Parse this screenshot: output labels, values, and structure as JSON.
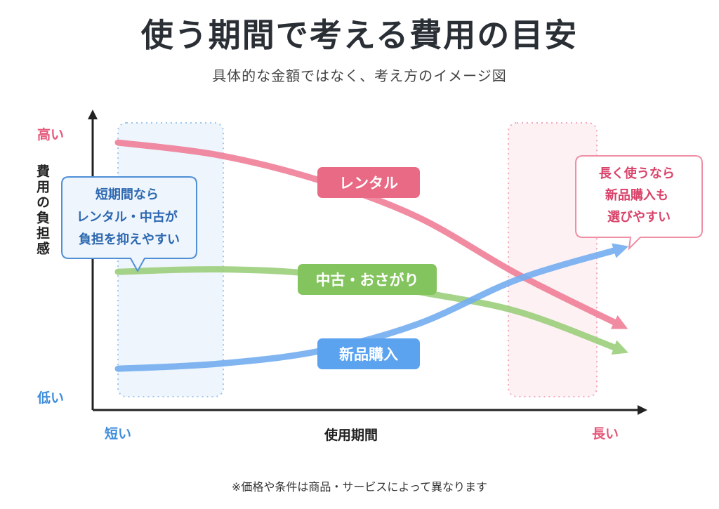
{
  "title": "使う期間で考える費用の目安",
  "subtitle": "具体的な金額ではなく、考え方のイメージ図",
  "footnote": "※価格や条件は商品・サービスによって異なります",
  "colors": {
    "rental": "#f07f99",
    "used": "#9ccf7c",
    "new": "#74aef0",
    "rental_label": "#e86a85",
    "used_label": "#84c45f",
    "new_label": "#5ba2ef",
    "high": "#e6587a",
    "low": "#3f8edc",
    "axis": "#222222"
  },
  "chart_data": {
    "type": "line",
    "title": "使う期間で考える費用の目安",
    "xlabel": "使用期間",
    "ylabel": "費用の負担感",
    "x_tick_labels": {
      "start": "短い",
      "end": "長い"
    },
    "y_tick_labels": {
      "low": "低い",
      "high": "高い"
    },
    "xlim": [
      0,
      1
    ],
    "ylim": [
      0,
      1
    ],
    "grid": false,
    "series": [
      {
        "name": "レンタル",
        "color": "#f07f99",
        "x": [
          0,
          0.2,
          0.4,
          0.6,
          0.8,
          1.0
        ],
        "y": [
          0.98,
          0.93,
          0.83,
          0.68,
          0.45,
          0.25
        ]
      },
      {
        "name": "中古・おさがり",
        "color": "#9ccf7c",
        "x": [
          0,
          0.2,
          0.4,
          0.6,
          0.8,
          1.0
        ],
        "y": [
          0.46,
          0.47,
          0.45,
          0.38,
          0.3,
          0.15
        ]
      },
      {
        "name": "新品購入",
        "color": "#74aef0",
        "x": [
          0,
          0.2,
          0.4,
          0.6,
          0.8,
          1.0
        ],
        "y": [
          0.07,
          0.09,
          0.14,
          0.25,
          0.43,
          0.55
        ]
      }
    ],
    "annotations": [
      {
        "text": "短期間なら\nレンタル・中古が\n負担を抑えやすい",
        "region": "short"
      },
      {
        "text": "長く使うなら\n新品購入も\n選びやすい",
        "region": "long"
      }
    ]
  }
}
